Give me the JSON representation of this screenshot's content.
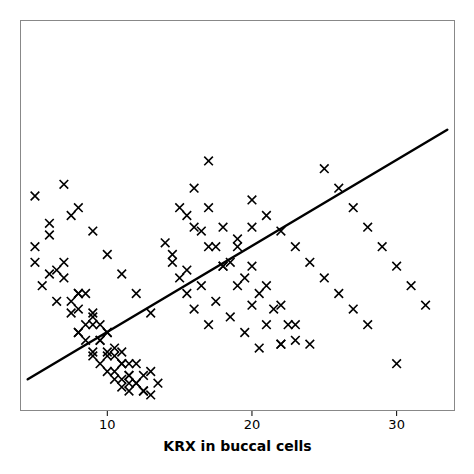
{
  "chart_data": {
    "type": "scatter",
    "xlabel": "KRX in buccal cells",
    "xlim": [
      4,
      34
    ],
    "ylim": [
      0,
      100
    ],
    "xticks": [
      10,
      20,
      30
    ],
    "tick_labels": "x",
    "grid": false,
    "series": [
      {
        "type": "scatter",
        "color": "#000000",
        "marker": "x",
        "x": [
          5.0,
          7.5,
          7.0,
          8.5,
          8.0,
          9.5,
          9.0,
          10.0,
          10.5,
          11.0,
          11.5,
          6.5,
          7.5,
          8.0,
          8.5,
          9.0,
          9.5,
          10.0,
          10.5,
          11.0,
          11.5,
          6.0,
          8.0,
          9.0,
          9.5,
          10.0,
          11.0,
          11.5,
          12.0,
          12.5,
          5.5,
          7.5,
          8.5,
          9.5,
          10.5,
          11.0,
          11.5,
          12.0,
          12.5,
          13.0,
          6.0,
          7.0,
          8.0,
          9.0,
          10.0,
          10.5,
          11.5,
          12.5,
          13.5,
          5.0,
          6.5,
          8.0,
          9.0,
          10.0,
          11.0,
          12.0,
          13.0,
          5.0,
          6.0,
          7.0,
          8.0,
          9.0,
          10.0,
          11.0,
          12.0,
          13.0,
          14.0,
          14.5,
          15.0,
          15.5,
          16.0,
          17.0,
          18.0,
          19.0,
          20.0,
          14.5,
          15.5,
          16.5,
          17.5,
          18.5,
          19.5,
          20.5,
          15.0,
          16.0,
          17.0,
          18.0,
          19.0,
          20.0,
          21.0,
          22.0,
          15.5,
          16.5,
          17.5,
          18.5,
          19.5,
          20.5,
          21.5,
          22.5,
          23.0,
          16.0,
          17.0,
          18.0,
          19.0,
          20.0,
          21.0,
          22.0,
          23.0,
          24.0,
          20.0,
          21.0,
          22.0,
          23.0,
          24.0,
          25.0,
          26.0,
          27.0,
          28.0,
          25.0,
          26.0,
          27.0,
          28.0,
          29.0,
          30.0,
          31.0,
          32.0,
          17.0,
          22.0,
          30.0
        ],
        "values": [
          38.0,
          50.0,
          34.0,
          30.0,
          20.0,
          22.0,
          15.0,
          14.0,
          10.0,
          8.0,
          7.0,
          28.0,
          25.0,
          20.0,
          18.0,
          14.0,
          12.0,
          10.0,
          8.0,
          6.0,
          5.0,
          35.0,
          26.0,
          22.0,
          18.0,
          15.0,
          12.0,
          9.0,
          7.0,
          5.0,
          32.0,
          28.0,
          22.0,
          18.0,
          14.0,
          12.0,
          9.0,
          7.0,
          5.0,
          4.0,
          45.0,
          38.0,
          30.0,
          25.0,
          20.0,
          16.0,
          12.0,
          9.0,
          7.0,
          42.0,
          36.0,
          30.0,
          24.0,
          20.0,
          15.0,
          12.0,
          10.0,
          55.0,
          48.0,
          58.0,
          52.0,
          46.0,
          40.0,
          35.0,
          30.0,
          25.0,
          43.0,
          38.0,
          34.0,
          30.0,
          26.0,
          22.0,
          37.0,
          44.0,
          47.0,
          40.0,
          36.0,
          32.0,
          28.0,
          24.0,
          20.0,
          16.0,
          52.0,
          47.0,
          42.0,
          37.0,
          32.0,
          27.0,
          22.0,
          17.0,
          50.0,
          46.0,
          42.0,
          38.0,
          34.0,
          30.0,
          26.0,
          22.0,
          18.0,
          57.0,
          52.0,
          47.0,
          42.0,
          37.0,
          32.0,
          27.0,
          22.0,
          17.0,
          54.0,
          50.0,
          46.0,
          42.0,
          38.0,
          34.0,
          30.0,
          26.0,
          22.0,
          62.0,
          57.0,
          52.0,
          47.0,
          42.0,
          37.0,
          32.0,
          27.0,
          64.0,
          17.0,
          12.0
        ]
      },
      {
        "type": "line",
        "color": "#000000",
        "x": [
          4.5,
          33.5
        ],
        "values": [
          8.0,
          72.0
        ]
      }
    ]
  }
}
